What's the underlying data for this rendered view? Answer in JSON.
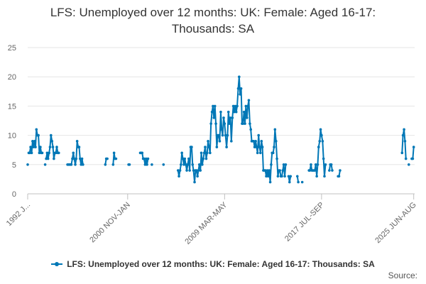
{
  "chart_data": {
    "type": "line",
    "title_lines": [
      "LFS: Unemployed over 12 months: UK: Female: Aged 16-17:",
      "Thousands: SA"
    ],
    "xlabel": "",
    "ylabel": "",
    "ylim": [
      0,
      25
    ],
    "y_ticks": [
      0,
      5,
      10,
      15,
      20,
      25
    ],
    "x_range": [
      1992.33,
      2025.58
    ],
    "x_tick_labels": [
      {
        "label": "1992 J...",
        "x": 1992.33
      },
      {
        "label": "2000 NOV-JAN",
        "x": 2000.92
      },
      {
        "label": "2009 MAR-MAY",
        "x": 2009.25
      },
      {
        "label": "2017 JUL-SEP",
        "x": 2017.58
      },
      {
        "label": "2025 JUN-AUG",
        "x": 2025.5
      }
    ],
    "grid": true,
    "legend_position": "bottom",
    "color": "#0077b6",
    "series": [
      {
        "name": "LFS: Unemployed over 12 months: UK: Female: Aged 16-17: Thousands: SA",
        "segments": [
          [
            [
              1992.33,
              5
            ]
          ],
          [
            [
              1992.42,
              7
            ],
            [
              1992.5,
              7
            ],
            [
              1992.58,
              8
            ],
            [
              1992.67,
              7
            ],
            [
              1992.75,
              9
            ],
            [
              1992.83,
              8
            ],
            [
              1992.92,
              9
            ],
            [
              1993.0,
              8
            ],
            [
              1993.08,
              11
            ],
            [
              1993.17,
              10
            ],
            [
              1993.25,
              10
            ],
            [
              1993.33,
              7
            ],
            [
              1993.42,
              8
            ],
            [
              1993.5,
              7
            ],
            [
              1993.58,
              7
            ]
          ],
          [
            [
              1993.83,
              5
            ]
          ],
          [
            [
              1993.92,
              6
            ],
            [
              1994.0,
              7
            ],
            [
              1994.08,
              6
            ],
            [
              1994.17,
              7
            ],
            [
              1994.25,
              8
            ],
            [
              1994.33,
              10
            ],
            [
              1994.42,
              9
            ],
            [
              1994.5,
              8
            ],
            [
              1994.58,
              6
            ],
            [
              1994.67,
              7
            ],
            [
              1994.75,
              7
            ],
            [
              1994.83,
              8
            ],
            [
              1994.92,
              7
            ],
            [
              1995.0,
              7
            ]
          ],
          [
            [
              1995.75,
              5
            ],
            [
              1995.83,
              5
            ],
            [
              1995.92,
              5
            ],
            [
              1996.0,
              5
            ],
            [
              1996.08,
              5
            ],
            [
              1996.17,
              6
            ],
            [
              1996.25,
              7
            ],
            [
              1996.33,
              6
            ],
            [
              1996.42,
              5
            ],
            [
              1996.5,
              6
            ],
            [
              1996.58,
              9
            ],
            [
              1996.67,
              8
            ],
            [
              1996.75,
              8
            ],
            [
              1996.83,
              6
            ],
            [
              1996.92,
              5
            ],
            [
              1997.0,
              6
            ],
            [
              1997.08,
              5
            ]
          ],
          [
            [
              1999.0,
              5
            ],
            [
              1999.08,
              6
            ],
            [
              1999.17,
              6
            ]
          ],
          [
            [
              1999.67,
              5
            ],
            [
              1999.75,
              7
            ],
            [
              1999.83,
              6
            ],
            [
              1999.92,
              6
            ]
          ],
          [
            [
              2001.0,
              5
            ],
            [
              2001.08,
              5
            ]
          ],
          [
            [
              2002.0,
              7
            ],
            [
              2002.08,
              7
            ],
            [
              2002.17,
              7
            ],
            [
              2002.25,
              6
            ],
            [
              2002.33,
              6
            ],
            [
              2002.42,
              5
            ],
            [
              2002.5,
              6
            ],
            [
              2002.58,
              5
            ],
            [
              2002.67,
              6
            ]
          ],
          [
            [
              2003.0,
              5
            ]
          ],
          [
            [
              2004.0,
              5
            ]
          ],
          [
            [
              2005.25,
              4
            ],
            [
              2005.33,
              3
            ],
            [
              2005.42,
              4
            ],
            [
              2005.5,
              5
            ],
            [
              2005.58,
              7
            ],
            [
              2005.67,
              6
            ],
            [
              2005.75,
              5
            ],
            [
              2005.83,
              6
            ],
            [
              2005.92,
              5
            ],
            [
              2006.0,
              4
            ],
            [
              2006.08,
              5
            ],
            [
              2006.17,
              6
            ],
            [
              2006.25,
              4
            ],
            [
              2006.33,
              8
            ],
            [
              2006.42,
              8
            ],
            [
              2006.5,
              5
            ],
            [
              2006.58,
              4
            ],
            [
              2006.67,
              2
            ],
            [
              2006.75,
              4
            ],
            [
              2006.83,
              4
            ],
            [
              2006.92,
              3
            ],
            [
              2007.0,
              4
            ],
            [
              2007.08,
              5
            ],
            [
              2007.17,
              4
            ],
            [
              2007.25,
              7
            ],
            [
              2007.33,
              5
            ],
            [
              2007.42,
              6
            ],
            [
              2007.5,
              7
            ],
            [
              2007.58,
              8
            ],
            [
              2007.67,
              6
            ],
            [
              2007.75,
              7
            ],
            [
              2007.83,
              9
            ],
            [
              2007.92,
              8
            ],
            [
              2008.0,
              7
            ],
            [
              2008.08,
              12
            ],
            [
              2008.17,
              14
            ],
            [
              2008.25,
              15
            ],
            [
              2008.33,
              13
            ],
            [
              2008.42,
              15
            ],
            [
              2008.5,
              12
            ],
            [
              2008.58,
              8
            ],
            [
              2008.67,
              10
            ],
            [
              2008.75,
              10
            ],
            [
              2008.83,
              9
            ],
            [
              2008.92,
              14
            ],
            [
              2009.0,
              11
            ],
            [
              2009.08,
              10
            ],
            [
              2009.17,
              13
            ],
            [
              2009.25,
              12
            ],
            [
              2009.33,
              10
            ],
            [
              2009.42,
              8
            ],
            [
              2009.5,
              10
            ],
            [
              2009.58,
              14
            ],
            [
              2009.67,
              12
            ],
            [
              2009.75,
              13
            ],
            [
              2009.83,
              9
            ],
            [
              2009.92,
              13
            ],
            [
              2010.0,
              15
            ],
            [
              2010.08,
              14
            ],
            [
              2010.17,
              15
            ],
            [
              2010.25,
              14
            ],
            [
              2010.33,
              15
            ],
            [
              2010.42,
              18
            ],
            [
              2010.5,
              20
            ],
            [
              2010.58,
              17
            ],
            [
              2010.67,
              18
            ],
            [
              2010.75,
              12
            ],
            [
              2010.83,
              12
            ],
            [
              2010.92,
              14
            ],
            [
              2011.0,
              12
            ],
            [
              2011.08,
              15
            ],
            [
              2011.17,
              13
            ],
            [
              2011.25,
              15
            ],
            [
              2011.33,
              16
            ],
            [
              2011.42,
              12
            ],
            [
              2011.5,
              11
            ],
            [
              2011.58,
              9
            ],
            [
              2011.67,
              9
            ],
            [
              2011.75,
              9
            ],
            [
              2011.83,
              8
            ],
            [
              2011.92,
              9
            ],
            [
              2012.0,
              8
            ],
            [
              2012.08,
              7
            ],
            [
              2012.17,
              10
            ],
            [
              2012.25,
              8
            ],
            [
              2012.33,
              7
            ],
            [
              2012.42,
              9
            ],
            [
              2012.5,
              8
            ],
            [
              2012.58,
              4
            ],
            [
              2012.67,
              4
            ],
            [
              2012.75,
              4
            ],
            [
              2012.83,
              3
            ],
            [
              2012.92,
              4
            ],
            [
              2013.0,
              3
            ],
            [
              2013.08,
              4
            ],
            [
              2013.17,
              2
            ],
            [
              2013.25,
              5
            ],
            [
              2013.33,
              7
            ],
            [
              2013.42,
              7
            ],
            [
              2013.5,
              8
            ],
            [
              2013.58,
              11
            ],
            [
              2013.67,
              9
            ],
            [
              2013.75,
              6
            ],
            [
              2013.83,
              3
            ],
            [
              2013.92,
              4
            ],
            [
              2014.0,
              4
            ],
            [
              2014.08,
              3
            ],
            [
              2014.17,
              3
            ],
            [
              2014.25,
              4
            ],
            [
              2014.33,
              5
            ],
            [
              2014.42,
              3
            ],
            [
              2014.5,
              5
            ]
          ],
          [
            [
              2014.75,
              3
            ],
            [
              2014.83,
              2
            ],
            [
              2014.92,
              3
            ]
          ],
          [
            [
              2015.5,
              3
            ],
            [
              2015.58,
              2
            ]
          ],
          [
            [
              2015.92,
              2
            ]
          ],
          [
            [
              2016.5,
              4
            ],
            [
              2016.58,
              4
            ],
            [
              2016.67,
              5
            ],
            [
              2016.75,
              4
            ],
            [
              2016.83,
              4
            ],
            [
              2016.92,
              4
            ],
            [
              2017.0,
              4
            ],
            [
              2017.08,
              5
            ],
            [
              2017.17,
              3
            ],
            [
              2017.25,
              5
            ],
            [
              2017.33,
              8
            ],
            [
              2017.42,
              9
            ],
            [
              2017.5,
              11
            ],
            [
              2017.58,
              10
            ],
            [
              2017.67,
              9
            ],
            [
              2017.75,
              6
            ],
            [
              2017.83,
              3
            ],
            [
              2017.92,
              5
            ]
          ],
          [
            [
              2018.25,
              4
            ],
            [
              2018.33,
              5
            ],
            [
              2018.42,
              5
            ],
            [
              2018.5,
              4
            ]
          ],
          [
            [
              2019.0,
              3
            ],
            [
              2019.08,
              3
            ],
            [
              2019.17,
              4
            ]
          ],
          [
            [
              2024.5,
              7
            ],
            [
              2024.58,
              10
            ],
            [
              2024.67,
              11
            ],
            [
              2024.75,
              9
            ],
            [
              2024.83,
              6
            ]
          ],
          [
            [
              2025.08,
              5
            ]
          ],
          [
            [
              2025.33,
              6
            ],
            [
              2025.42,
              6
            ],
            [
              2025.5,
              8
            ]
          ]
        ]
      }
    ]
  },
  "source_label": "Source:"
}
